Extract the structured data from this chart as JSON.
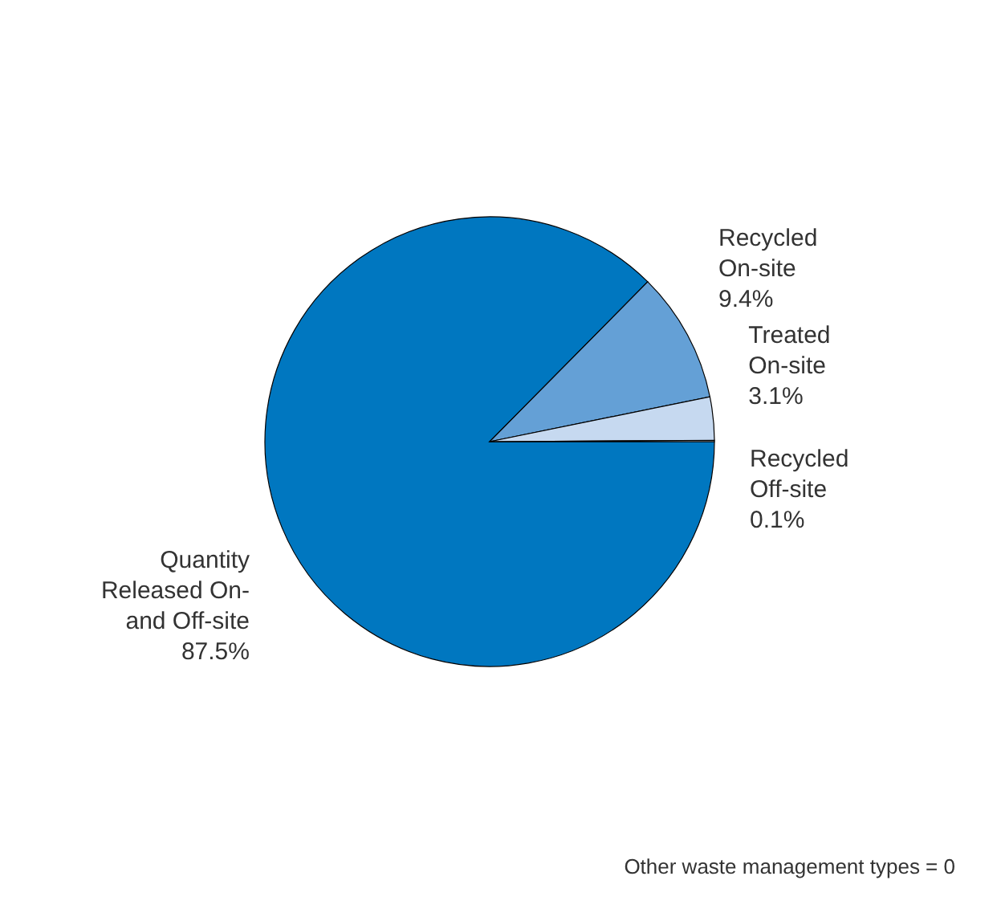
{
  "chart_data": {
    "type": "pie",
    "categories": [
      "Quantity Released On- and Off-site",
      "Recycled On-site",
      "Treated On-site",
      "Recycled Off-site"
    ],
    "values": [
      87.5,
      9.4,
      3.1,
      0.1
    ],
    "colors": [
      "#0077c0",
      "#64a0d6",
      "#c6d9f0",
      "#b0b0b0"
    ],
    "value_labels": [
      "87.5%",
      "9.4%",
      "3.1%",
      "0.1%"
    ],
    "legend": false,
    "annotations": [
      "Other waste management types = 0"
    ]
  }
}
